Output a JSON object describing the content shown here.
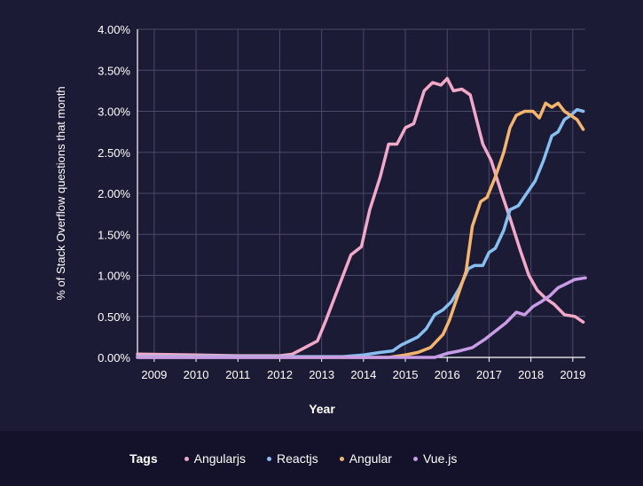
{
  "chart_data": {
    "type": "line",
    "xlabel": "Year",
    "ylabel": "% of Stack Overflow questions that month",
    "x_ticks": [
      "2009",
      "2010",
      "2011",
      "2012",
      "2013",
      "2014",
      "2015",
      "2016",
      "2017",
      "2018",
      "2019"
    ],
    "y_ticks": [
      "0.00%",
      "0.50%",
      "1.00%",
      "1.50%",
      "2.00%",
      "2.50%",
      "3.00%",
      "3.50%",
      "4.00%"
    ],
    "xlim": [
      2008.6,
      2019.3
    ],
    "ylim": [
      0,
      4.0
    ],
    "grid": true,
    "legend_position": "bottom",
    "legend_title": "Tags",
    "series": [
      {
        "name": "Angularjs",
        "color": "#f2a9c9",
        "points": [
          [
            2008.6,
            0.04
          ],
          [
            2010,
            0.03
          ],
          [
            2011,
            0.02
          ],
          [
            2012,
            0.02
          ],
          [
            2012.3,
            0.04
          ],
          [
            2012.6,
            0.12
          ],
          [
            2012.9,
            0.2
          ],
          [
            2013.1,
            0.45
          ],
          [
            2013.4,
            0.85
          ],
          [
            2013.7,
            1.25
          ],
          [
            2013.95,
            1.35
          ],
          [
            2014.15,
            1.8
          ],
          [
            2014.4,
            2.2
          ],
          [
            2014.6,
            2.6
          ],
          [
            2014.8,
            2.6
          ],
          [
            2015.0,
            2.8
          ],
          [
            2015.2,
            2.85
          ],
          [
            2015.45,
            3.25
          ],
          [
            2015.65,
            3.35
          ],
          [
            2015.85,
            3.32
          ],
          [
            2016.0,
            3.4
          ],
          [
            2016.15,
            3.25
          ],
          [
            2016.35,
            3.27
          ],
          [
            2016.55,
            3.2
          ],
          [
            2016.7,
            2.9
          ],
          [
            2016.85,
            2.6
          ],
          [
            2017.05,
            2.4
          ],
          [
            2017.3,
            2.0
          ],
          [
            2017.5,
            1.7
          ],
          [
            2017.75,
            1.3
          ],
          [
            2017.95,
            1.0
          ],
          [
            2018.15,
            0.82
          ],
          [
            2018.35,
            0.72
          ],
          [
            2018.55,
            0.65
          ],
          [
            2018.8,
            0.52
          ],
          [
            2019.05,
            0.5
          ],
          [
            2019.25,
            0.43
          ]
        ]
      },
      {
        "name": "Reactjs",
        "color": "#87bff0",
        "points": [
          [
            2008.6,
            0.01
          ],
          [
            2012,
            0.01
          ],
          [
            2013.5,
            0.01
          ],
          [
            2014.0,
            0.03
          ],
          [
            2014.4,
            0.06
          ],
          [
            2014.7,
            0.08
          ],
          [
            2014.9,
            0.15
          ],
          [
            2015.1,
            0.2
          ],
          [
            2015.3,
            0.25
          ],
          [
            2015.5,
            0.35
          ],
          [
            2015.7,
            0.52
          ],
          [
            2015.9,
            0.58
          ],
          [
            2016.1,
            0.68
          ],
          [
            2016.3,
            0.85
          ],
          [
            2016.5,
            1.08
          ],
          [
            2016.65,
            1.12
          ],
          [
            2016.85,
            1.12
          ],
          [
            2017.0,
            1.28
          ],
          [
            2017.15,
            1.33
          ],
          [
            2017.35,
            1.55
          ],
          [
            2017.5,
            1.8
          ],
          [
            2017.7,
            1.85
          ],
          [
            2017.9,
            2.0
          ],
          [
            2018.1,
            2.15
          ],
          [
            2018.3,
            2.4
          ],
          [
            2018.5,
            2.7
          ],
          [
            2018.65,
            2.75
          ],
          [
            2018.8,
            2.9
          ],
          [
            2018.95,
            2.95
          ],
          [
            2019.1,
            3.02
          ],
          [
            2019.25,
            3.0
          ]
        ]
      },
      {
        "name": "Angular",
        "color": "#f5b56f",
        "points": [
          [
            2008.6,
            0.0
          ],
          [
            2014.6,
            0.0
          ],
          [
            2015.0,
            0.03
          ],
          [
            2015.3,
            0.06
          ],
          [
            2015.6,
            0.12
          ],
          [
            2015.9,
            0.28
          ],
          [
            2016.05,
            0.45
          ],
          [
            2016.25,
            0.75
          ],
          [
            2016.45,
            1.05
          ],
          [
            2016.6,
            1.6
          ],
          [
            2016.8,
            1.9
          ],
          [
            2016.95,
            1.95
          ],
          [
            2017.15,
            2.2
          ],
          [
            2017.35,
            2.5
          ],
          [
            2017.5,
            2.8
          ],
          [
            2017.65,
            2.95
          ],
          [
            2017.85,
            3.0
          ],
          [
            2018.05,
            3.0
          ],
          [
            2018.2,
            2.92
          ],
          [
            2018.35,
            3.1
          ],
          [
            2018.5,
            3.05
          ],
          [
            2018.65,
            3.1
          ],
          [
            2018.8,
            3.0
          ],
          [
            2018.95,
            2.95
          ],
          [
            2019.1,
            2.9
          ],
          [
            2019.25,
            2.78
          ]
        ]
      },
      {
        "name": "Vue.js",
        "color": "#c89ce6",
        "points": [
          [
            2008.6,
            0.0
          ],
          [
            2015.7,
            0.0
          ],
          [
            2016.0,
            0.05
          ],
          [
            2016.3,
            0.08
          ],
          [
            2016.6,
            0.12
          ],
          [
            2016.9,
            0.22
          ],
          [
            2017.15,
            0.32
          ],
          [
            2017.4,
            0.42
          ],
          [
            2017.65,
            0.55
          ],
          [
            2017.85,
            0.52
          ],
          [
            2018.05,
            0.62
          ],
          [
            2018.25,
            0.68
          ],
          [
            2018.45,
            0.75
          ],
          [
            2018.65,
            0.85
          ],
          [
            2018.85,
            0.9
          ],
          [
            2019.05,
            0.95
          ],
          [
            2019.3,
            0.97
          ]
        ]
      }
    ]
  }
}
